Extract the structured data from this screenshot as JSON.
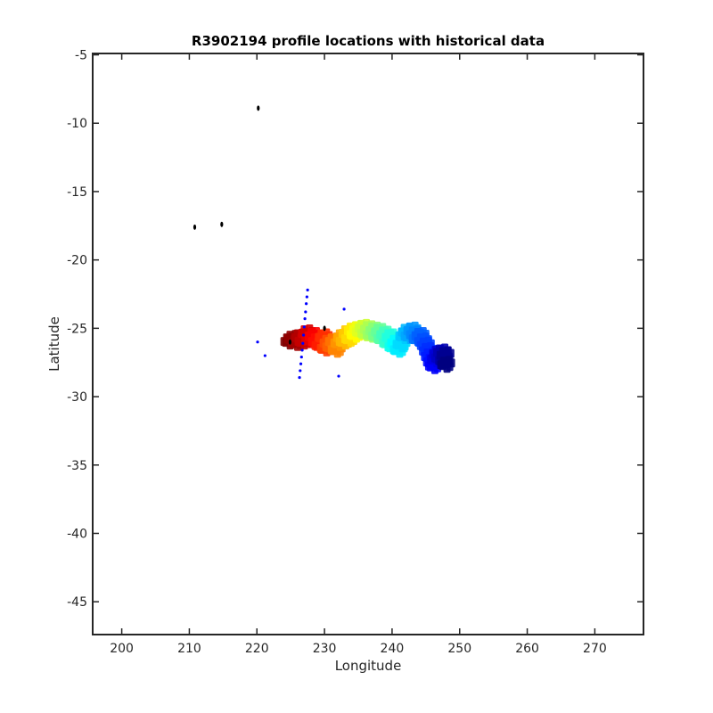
{
  "chart_data": {
    "type": "scatter",
    "title": "R3902194 profile locations with historical data",
    "xlabel": "Longitude",
    "ylabel": "Latitude",
    "xlim": [
      195.7,
      277.2
    ],
    "ylim": [
      -47.4,
      -4.9
    ],
    "xticks": [
      200,
      210,
      220,
      230,
      240,
      250,
      260,
      270
    ],
    "yticks": [
      -5,
      -10,
      -15,
      -20,
      -25,
      -30,
      -35,
      -40,
      -45
    ],
    "grid": false,
    "box": true,
    "colors": {
      "historical": "#0000ff",
      "overlay": "#000000",
      "cmap": "jet",
      "axis": "#262626"
    },
    "trajectory_profiles": {
      "marker": "number labels (dense, overlapping)",
      "colormap": "jet",
      "points": [
        [
          224.8,
          -25.9
        ],
        [
          225.3,
          -25.7
        ],
        [
          225.9,
          -26.0
        ],
        [
          226.4,
          -25.6
        ],
        [
          226.9,
          -25.9
        ],
        [
          227.4,
          -25.3
        ],
        [
          227.9,
          -25.8
        ],
        [
          228.4,
          -25.5
        ],
        [
          228.9,
          -25.9
        ],
        [
          229.4,
          -26.2
        ],
        [
          229.9,
          -25.6
        ],
        [
          230.2,
          -26.4
        ],
        [
          230.6,
          -26.0
        ],
        [
          231.0,
          -26.3
        ],
        [
          231.4,
          -25.9
        ],
        [
          231.8,
          -26.5
        ],
        [
          232.2,
          -26.0
        ],
        [
          232.6,
          -25.6
        ],
        [
          233.0,
          -25.9
        ],
        [
          233.4,
          -25.3
        ],
        [
          233.8,
          -25.7
        ],
        [
          234.2,
          -25.1
        ],
        [
          234.6,
          -25.4
        ],
        [
          235.0,
          -25.0
        ],
        [
          235.4,
          -25.2
        ],
        [
          235.8,
          -24.9
        ],
        [
          236.2,
          -25.3
        ],
        [
          236.6,
          -25.0
        ],
        [
          237.0,
          -25.4
        ],
        [
          237.4,
          -25.1
        ],
        [
          237.8,
          -25.5
        ],
        [
          238.2,
          -25.2
        ],
        [
          238.6,
          -25.7
        ],
        [
          239.0,
          -25.4
        ],
        [
          239.4,
          -26.0
        ],
        [
          239.8,
          -25.6
        ],
        [
          240.2,
          -26.3
        ],
        [
          240.6,
          -26.0
        ],
        [
          241.0,
          -26.5
        ],
        [
          241.4,
          -26.1
        ],
        [
          241.8,
          -25.5
        ],
        [
          242.2,
          -25.2
        ],
        [
          242.6,
          -25.5
        ],
        [
          243.0,
          -25.1
        ],
        [
          243.4,
          -25.4
        ],
        [
          243.8,
          -25.7
        ],
        [
          244.2,
          -25.5
        ],
        [
          244.6,
          -25.9
        ],
        [
          245.0,
          -26.2
        ],
        [
          245.3,
          -26.6
        ],
        [
          245.6,
          -27.0
        ],
        [
          245.9,
          -27.4
        ],
        [
          246.2,
          -27.7
        ],
        [
          246.5,
          -27.2
        ],
        [
          246.8,
          -26.8
        ],
        [
          247.1,
          -27.1
        ],
        [
          247.4,
          -26.7
        ],
        [
          247.7,
          -27.3
        ],
        [
          247.9,
          -26.9
        ],
        [
          248.0,
          -27.6
        ]
      ]
    },
    "historical_profiles": {
      "marker": "dot",
      "color": "#0000ff",
      "points": [
        [
          227.5,
          -22.2
        ],
        [
          227.4,
          -22.7
        ],
        [
          227.3,
          -23.2
        ],
        [
          227.2,
          -23.8
        ],
        [
          227.1,
          -24.3
        ],
        [
          227.0,
          -24.9
        ],
        [
          226.9,
          -25.5
        ],
        [
          226.8,
          -26.1
        ],
        [
          226.7,
          -26.6
        ],
        [
          226.6,
          -27.1
        ],
        [
          226.5,
          -27.6
        ],
        [
          226.4,
          -28.1
        ],
        [
          226.3,
          -28.6
        ],
        [
          220.1,
          -26.0
        ],
        [
          221.2,
          -27.0
        ],
        [
          232.9,
          -23.6
        ],
        [
          232.1,
          -28.5
        ]
      ]
    },
    "other_marks": {
      "color": "#000000",
      "points": [
        [
          220.2,
          -8.9
        ],
        [
          210.8,
          -17.6
        ],
        [
          214.8,
          -17.4
        ],
        [
          230.0,
          -25.0
        ],
        [
          224.9,
          -26.0
        ]
      ]
    }
  }
}
